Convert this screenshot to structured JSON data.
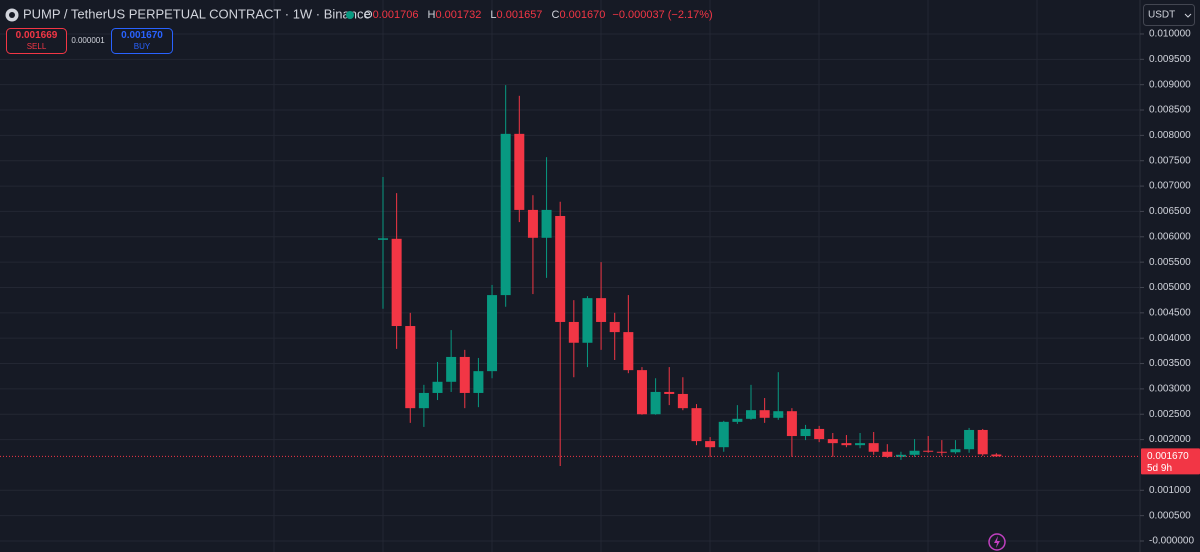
{
  "chart_data": {
    "type": "candlestick",
    "title": "PUMP / TetherUS PERPETUAL CONTRACT · 1W · Binance",
    "legend": {
      "o_label": "O",
      "o": "0.001706",
      "h_label": "H",
      "h": "0.001732",
      "l_label": "L",
      "l": "0.001657",
      "c_label": "C",
      "c": "0.001670",
      "change": "−0.000037 (−2.17%)"
    },
    "sell": {
      "price": "0.001669",
      "label": "SELL"
    },
    "spread": "0.000001",
    "buy": {
      "price": "0.001670",
      "label": "BUY"
    },
    "currency": "USDT",
    "last_price_label": "0.001670",
    "countdown": "5d 9h",
    "up_color": "#089981",
    "down_color": "#f23645",
    "grid": true,
    "ylim": [
      -0.000217,
      0.01067
    ],
    "yticks": [
      {
        "value": 0.01,
        "label": "0.010000"
      },
      {
        "value": 0.0095,
        "label": "0.009500"
      },
      {
        "value": 0.009,
        "label": "0.009000"
      },
      {
        "value": 0.0085,
        "label": "0.008500"
      },
      {
        "value": 0.008,
        "label": "0.008000"
      },
      {
        "value": 0.0075,
        "label": "0.007500"
      },
      {
        "value": 0.007,
        "label": "0.007000"
      },
      {
        "value": 0.0065,
        "label": "0.006500"
      },
      {
        "value": 0.006,
        "label": "0.006000"
      },
      {
        "value": 0.0055,
        "label": "0.005500"
      },
      {
        "value": 0.005,
        "label": "0.005000"
      },
      {
        "value": 0.0045,
        "label": "0.004500"
      },
      {
        "value": 0.004,
        "label": "0.004000"
      },
      {
        "value": 0.0035,
        "label": "0.003500"
      },
      {
        "value": 0.003,
        "label": "0.003000"
      },
      {
        "value": 0.0025,
        "label": "0.002500"
      },
      {
        "value": 0.002,
        "label": "0.002000"
      },
      {
        "value": 0.001,
        "label": "0.001000"
      },
      {
        "value": 0.0005,
        "label": "0.000500"
      },
      {
        "value": 0,
        "label": "-0.000000"
      }
    ],
    "open": [
      0.00594,
      0.00596,
      0.00424,
      0.00262,
      0.00292,
      0.00314,
      0.00363,
      0.00292,
      0.00335,
      0.00485,
      0.00803,
      0.00653,
      0.00598,
      0.00641,
      0.00432,
      0.00391,
      0.00479,
      0.00432,
      0.00412,
      0.00337,
      0.0025,
      0.00294,
      0.0029,
      0.00262,
      0.00197,
      0.00185,
      0.00235,
      0.00241,
      0.00258,
      0.00243,
      0.00256,
      0.00207,
      0.00221,
      0.00201,
      0.00193,
      0.00189,
      0.00193,
      0.00176,
      0.00166,
      0.0017,
      0.00178,
      0.00176,
      0.00175,
      0.00181,
      0.00219,
      0.001706
    ],
    "high": [
      0.00718,
      0.00686,
      0.0045,
      0.00308,
      0.00353,
      0.00416,
      0.00377,
      0.00361,
      0.00505,
      0.00899,
      0.00878,
      0.00682,
      0.00757,
      0.00669,
      0.00475,
      0.00483,
      0.0055,
      0.0045,
      0.00485,
      0.00343,
      0.00321,
      0.00343,
      0.00323,
      0.0027,
      0.00205,
      0.00237,
      0.00268,
      0.00308,
      0.00282,
      0.00333,
      0.00262,
      0.00229,
      0.00227,
      0.00213,
      0.00209,
      0.00213,
      0.00215,
      0.00191,
      0.00176,
      0.00201,
      0.00207,
      0.00199,
      0.00199,
      0.00223,
      0.00221,
      0.001732
    ],
    "low": [
      0.00458,
      0.00379,
      0.00233,
      0.00225,
      0.00278,
      0.00294,
      0.00262,
      0.00264,
      0.00321,
      0.00462,
      0.00629,
      0.00487,
      0.00519,
      0.00148,
      0.00323,
      0.00343,
      0.00377,
      0.00357,
      0.00331,
      0.00249,
      0.00249,
      0.00268,
      0.00258,
      0.00189,
      0.00166,
      0.00176,
      0.00231,
      0.00239,
      0.00233,
      0.00239,
      0.00166,
      0.00199,
      0.00195,
      0.00166,
      0.00185,
      0.00183,
      0.0017,
      0.00164,
      0.0016,
      0.00166,
      0.00174,
      0.00168,
      0.00172,
      0.00174,
      0.00168,
      0.001657
    ],
    "close": [
      0.00597,
      0.00424,
      0.00262,
      0.00292,
      0.00314,
      0.00363,
      0.00292,
      0.00335,
      0.00485,
      0.00803,
      0.00653,
      0.00598,
      0.00653,
      0.00432,
      0.00391,
      0.00479,
      0.00432,
      0.00412,
      0.00337,
      0.0025,
      0.00294,
      0.0029,
      0.00262,
      0.00197,
      0.00185,
      0.00235,
      0.00241,
      0.00258,
      0.00243,
      0.00256,
      0.00207,
      0.00221,
      0.00201,
      0.00193,
      0.00189,
      0.00193,
      0.00176,
      0.00166,
      0.0017,
      0.00178,
      0.00176,
      0.00175,
      0.00181,
      0.00219,
      0.00171,
      0.00167
    ]
  }
}
